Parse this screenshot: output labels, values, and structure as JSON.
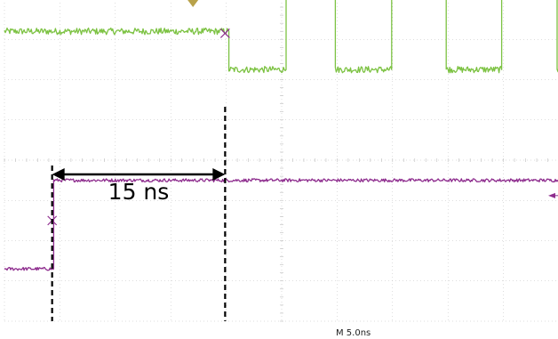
{
  "chart_data": {
    "type": "line",
    "x_unit": "ns",
    "time_scale_label": "M 5.0ns",
    "grid": true,
    "colors": {
      "background": "#ffffff",
      "grid": "#bdbdbd",
      "channel_green": "#7cc242",
      "channel_purple": "#8e2d8e",
      "annotation": "#000000"
    },
    "series": [
      {
        "channel": "green",
        "noise_div": 0.08,
        "levels": [
          {
            "from_ns": 0.0,
            "to_ns": 20.2,
            "level_div": 7.2
          },
          {
            "from_ns": 20.2,
            "to_ns": 25.4,
            "level_div": 6.25
          },
          {
            "from_ns": 25.4,
            "to_ns": 29.8,
            "level_div": 8.1
          },
          {
            "from_ns": 29.8,
            "to_ns": 34.9,
            "level_div": 6.25
          },
          {
            "from_ns": 34.9,
            "to_ns": 39.8,
            "level_div": 8.1
          },
          {
            "from_ns": 39.8,
            "to_ns": 44.8,
            "level_div": 6.25
          },
          {
            "from_ns": 44.8,
            "to_ns": 49.8,
            "level_div": 8.1
          },
          {
            "from_ns": 49.8,
            "to_ns": 50.0,
            "level_div": 6.25
          }
        ]
      },
      {
        "channel": "purple",
        "noise_div": 0.04,
        "levels": [
          {
            "from_ns": 0.0,
            "to_ns": 4.4,
            "level_div": 1.3
          },
          {
            "from_ns": 4.4,
            "to_ns": 50.0,
            "level_div": 3.5
          }
        ]
      }
    ],
    "cursors": [
      {
        "channel": "purple",
        "t_ns": 4.3,
        "level_div": 2.5
      },
      {
        "channel": "green",
        "t_ns": 19.9,
        "level_div": 7.15
      }
    ],
    "measurement": {
      "from_ns": 4.3,
      "to_ns": 19.9,
      "label": "15 ns"
    }
  }
}
